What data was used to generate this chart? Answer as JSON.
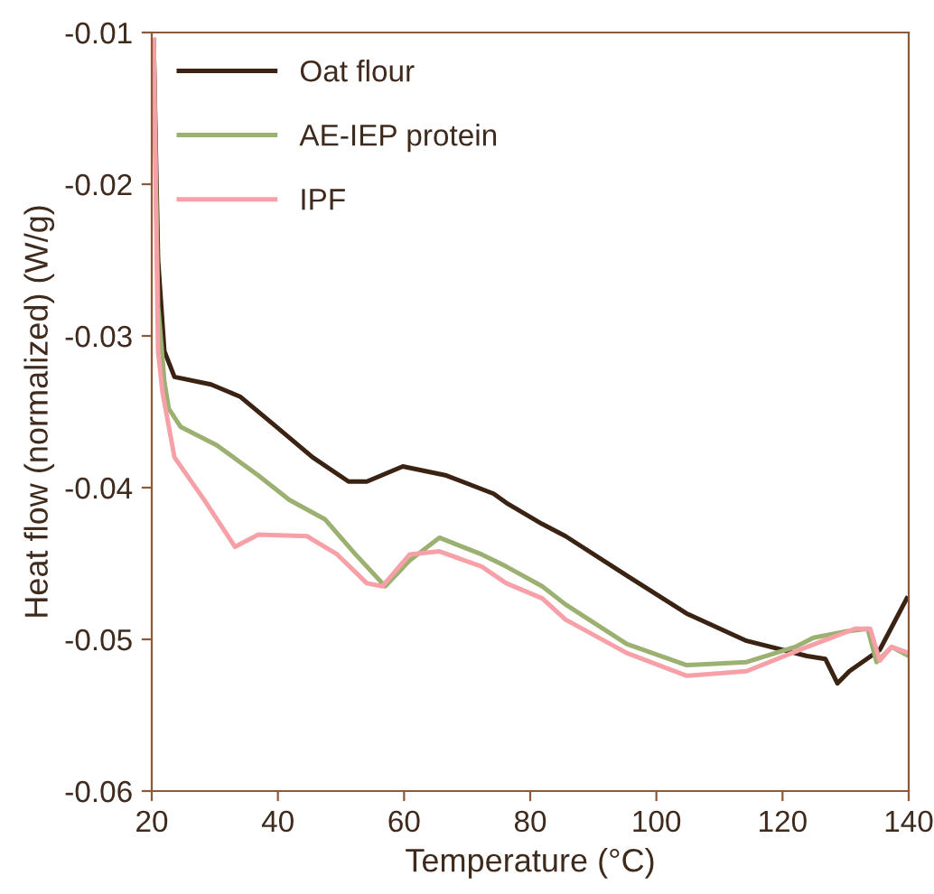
{
  "chart_data": {
    "type": "line",
    "xlabel": "Temperature (°C)",
    "ylabel": "Heat flow (normalized) (W/g)",
    "xlim": [
      20,
      140
    ],
    "xticks": [
      20,
      40,
      60,
      80,
      100,
      120,
      140
    ],
    "ylim": [
      -0.06,
      -0.01
    ],
    "yticks": [
      -0.06,
      -0.05,
      -0.04,
      -0.03,
      -0.02,
      -0.01
    ],
    "legend": "top left",
    "grid": false,
    "marker": "none",
    "line_style": "solid",
    "series": [
      {
        "name": "Oat flour",
        "color": "#3b2314",
        "x": [
          20.3,
          21,
          22,
          23.6,
          29.4,
          34.0,
          39.8,
          45.5,
          51.2,
          54.1,
          59.8,
          66.7,
          74.2,
          76.2,
          81.9,
          85.6,
          95.3,
          104.8,
          114.3,
          123.9,
          126.8,
          128.7,
          130.6,
          135.4,
          139.7
        ],
        "values": [
          -0.0105,
          -0.025,
          -0.031,
          -0.0327,
          -0.0332,
          -0.034,
          -0.036,
          -0.038,
          -0.0396,
          -0.0396,
          -0.0386,
          -0.0392,
          -0.0404,
          -0.041,
          -0.0424,
          -0.0432,
          -0.0458,
          -0.0483,
          -0.0501,
          -0.0511,
          -0.0513,
          -0.0529,
          -0.0521,
          -0.0507,
          -0.0473
        ]
      },
      {
        "name": "AE-IEP protein",
        "color": "#9bb071",
        "x": [
          20.3,
          21,
          22,
          22.7,
          24.6,
          30.3,
          36.9,
          41.8,
          47.5,
          52.3,
          57.0,
          60.9,
          65.6,
          72.3,
          76.2,
          81.9,
          85.6,
          95.3,
          104.8,
          114.3,
          122.0,
          124.9,
          129.7,
          133.5,
          134.9,
          137.3,
          140
        ],
        "values": [
          -0.0105,
          -0.028,
          -0.033,
          -0.0348,
          -0.036,
          -0.0372,
          -0.0392,
          -0.0408,
          -0.0421,
          -0.0444,
          -0.0465,
          -0.0448,
          -0.0433,
          -0.0444,
          -0.0452,
          -0.0465,
          -0.0477,
          -0.0503,
          -0.0517,
          -0.0515,
          -0.0505,
          -0.0499,
          -0.0495,
          -0.0493,
          -0.0515,
          -0.0505,
          -0.0511
        ]
      },
      {
        "name": "IPF",
        "color": "#f7a0a8",
        "x": [
          20.3,
          21,
          21.7,
          23.6,
          28.3,
          33.2,
          36.9,
          44.6,
          49.4,
          54.1,
          56.6,
          60.9,
          65.6,
          72.3,
          76.2,
          81.9,
          85.6,
          95.3,
          104.8,
          114.3,
          123.9,
          131.5,
          133.9,
          135.4,
          137.3,
          140
        ],
        "values": [
          -0.0105,
          -0.031,
          -0.0337,
          -0.038,
          -0.0408,
          -0.0439,
          -0.0431,
          -0.0432,
          -0.0444,
          -0.0463,
          -0.0465,
          -0.0444,
          -0.0442,
          -0.0452,
          -0.0463,
          -0.0473,
          -0.0487,
          -0.0509,
          -0.0524,
          -0.0521,
          -0.0505,
          -0.0493,
          -0.0493,
          -0.0514,
          -0.0505,
          -0.0509
        ]
      }
    ]
  }
}
